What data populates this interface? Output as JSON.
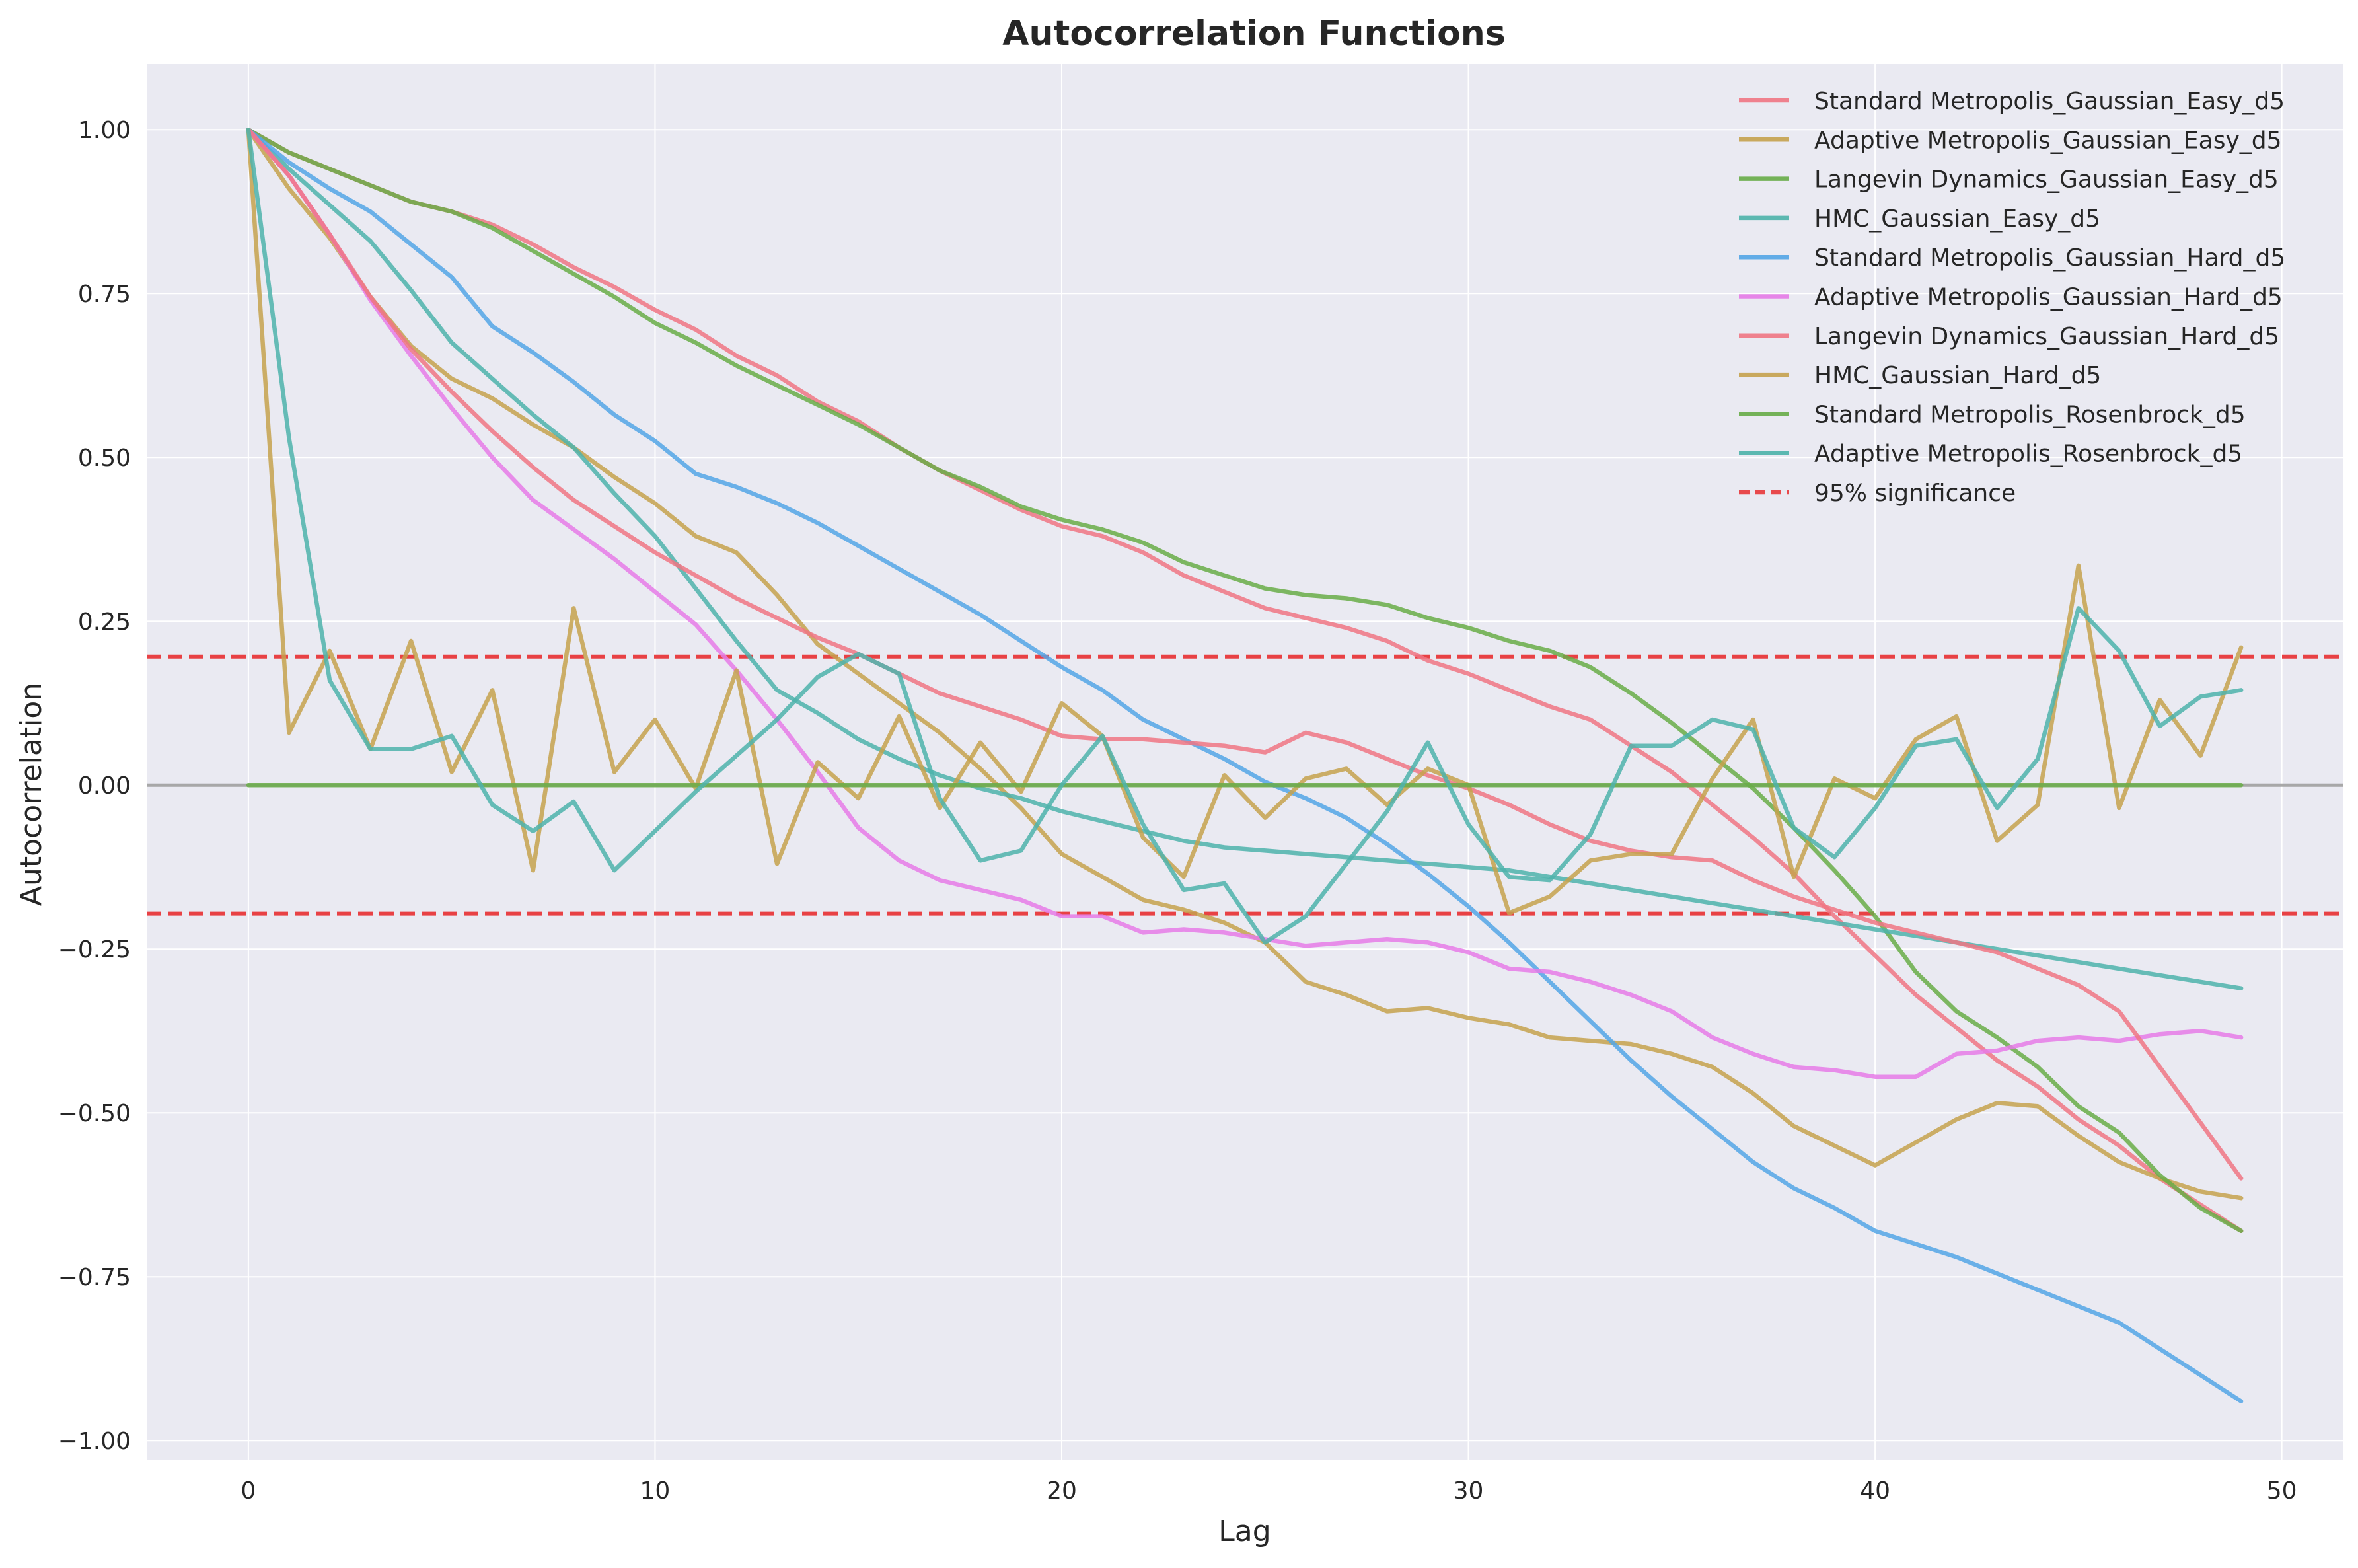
{
  "chart_data": {
    "type": "line",
    "title": "Autocorrelation Functions",
    "xlabel": "Lag",
    "ylabel": "Autocorrelation",
    "xlim": [
      -2.5,
      51.5
    ],
    "ylim": [
      -1.03,
      1.1
    ],
    "grid": true,
    "legend_position": "top-right",
    "x_ticks": [
      0,
      10,
      20,
      30,
      40,
      50
    ],
    "x_tick_labels": [
      "0",
      "10",
      "20",
      "30",
      "40",
      "50"
    ],
    "y_ticks": [
      -1.0,
      -0.75,
      -0.5,
      -0.25,
      0.0,
      0.25,
      0.5,
      0.75,
      1.0
    ],
    "y_tick_labels": [
      "−1.00",
      "−0.75",
      "−0.50",
      "−0.25",
      "0.00",
      "0.25",
      "0.50",
      "0.75",
      "1.00"
    ],
    "reference_lines": [
      {
        "name": "95% significance",
        "y": 0.196,
        "style": "dashed",
        "color": "#e8383b"
      },
      {
        "y": -0.196,
        "style": "dashed",
        "color": "#e8383b"
      },
      {
        "y": 0.0,
        "style": "solid",
        "color": "#999999"
      }
    ],
    "x": [
      0,
      1,
      2,
      3,
      4,
      5,
      6,
      7,
      8,
      9,
      10,
      11,
      12,
      13,
      14,
      15,
      16,
      17,
      18,
      19,
      20,
      21,
      22,
      23,
      24,
      25,
      26,
      27,
      28,
      29,
      30,
      31,
      32,
      33,
      34,
      35,
      36,
      37,
      38,
      39,
      40,
      41,
      42,
      43,
      44,
      45,
      46,
      47,
      48,
      49
    ],
    "series": [
      {
        "name": "Standard Metropolis_Gaussian_Easy_d5",
        "color": "#f07684",
        "values": [
          1.0,
          0.965,
          0.94,
          0.915,
          0.89,
          0.875,
          0.855,
          0.825,
          0.79,
          0.76,
          0.725,
          0.695,
          0.655,
          0.625,
          0.585,
          0.555,
          0.515,
          0.48,
          0.45,
          0.42,
          0.395,
          0.38,
          0.355,
          0.32,
          0.295,
          0.27,
          0.255,
          0.24,
          0.22,
          0.19,
          0.17,
          0.145,
          0.12,
          0.1,
          0.06,
          0.02,
          -0.03,
          -0.08,
          -0.135,
          -0.2,
          -0.26,
          -0.32,
          -0.37,
          -0.42,
          -0.46,
          -0.51,
          -0.55,
          -0.6,
          -0.64,
          -0.68
        ]
      },
      {
        "name": "Adaptive Metropolis_Gaussian_Easy_d5",
        "color": "#c6a24e",
        "values": [
          1.0,
          0.91,
          0.835,
          0.745,
          0.67,
          0.62,
          0.59,
          0.55,
          0.515,
          0.47,
          0.43,
          0.38,
          0.355,
          0.29,
          0.215,
          0.17,
          0.125,
          0.08,
          0.025,
          -0.035,
          -0.105,
          -0.14,
          -0.175,
          -0.19,
          -0.21,
          -0.24,
          -0.3,
          -0.32,
          -0.345,
          -0.34,
          -0.355,
          -0.365,
          -0.385,
          -0.39,
          -0.395,
          -0.41,
          -0.43,
          -0.47,
          -0.52,
          -0.55,
          -0.58,
          -0.545,
          -0.51,
          -0.485,
          -0.49,
          -0.535,
          -0.575,
          -0.6,
          -0.62,
          -0.63
        ]
      },
      {
        "name": "Langevin Dynamics_Gaussian_Easy_d5",
        "color": "#68ad48",
        "values": [
          1.0,
          0.965,
          0.94,
          0.915,
          0.89,
          0.875,
          0.85,
          0.815,
          0.78,
          0.745,
          0.705,
          0.675,
          0.64,
          0.61,
          0.58,
          0.55,
          0.515,
          0.48,
          0.455,
          0.425,
          0.405,
          0.39,
          0.37,
          0.34,
          0.32,
          0.3,
          0.29,
          0.285,
          0.275,
          0.255,
          0.24,
          0.22,
          0.205,
          0.18,
          0.14,
          0.095,
          0.045,
          -0.005,
          -0.065,
          -0.13,
          -0.2,
          -0.285,
          -0.345,
          -0.385,
          -0.43,
          -0.49,
          -0.53,
          -0.595,
          -0.645,
          -0.68
        ]
      },
      {
        "name": "HMC_Gaussian_Easy_d5",
        "color": "#4db3ab",
        "values": [
          1.0,
          0.94,
          0.885,
          0.83,
          0.755,
          0.675,
          0.62,
          0.565,
          0.515,
          0.445,
          0.38,
          0.3,
          0.22,
          0.145,
          0.11,
          0.07,
          0.04,
          0.015,
          -0.005,
          -0.02,
          -0.04,
          -0.055,
          -0.07,
          -0.085,
          -0.095,
          -0.1,
          -0.105,
          -0.11,
          -0.115,
          -0.12,
          -0.125,
          -0.13,
          -0.14,
          -0.15,
          -0.16,
          -0.17,
          -0.18,
          -0.19,
          -0.2,
          -0.21,
          -0.22,
          -0.23,
          -0.24,
          -0.25,
          -0.26,
          -0.27,
          -0.28,
          -0.29,
          -0.3,
          -0.31
        ]
      },
      {
        "name": "Standard Metropolis_Gaussian_Hard_d5",
        "color": "#54a6e6",
        "values": [
          1.0,
          0.95,
          0.91,
          0.875,
          0.825,
          0.775,
          0.7,
          0.66,
          0.615,
          0.565,
          0.525,
          0.475,
          0.455,
          0.43,
          0.4,
          0.365,
          0.33,
          0.295,
          0.26,
          0.22,
          0.18,
          0.145,
          0.1,
          0.07,
          0.04,
          0.005,
          -0.02,
          -0.05,
          -0.09,
          -0.135,
          -0.185,
          -0.24,
          -0.3,
          -0.36,
          -0.42,
          -0.475,
          -0.525,
          -0.575,
          -0.615,
          -0.645,
          -0.68,
          -0.7,
          -0.72,
          -0.745,
          -0.77,
          -0.795,
          -0.82,
          -0.86,
          -0.9,
          -0.94
        ]
      },
      {
        "name": "Adaptive Metropolis_Gaussian_Hard_d5",
        "color": "#e67be8",
        "values": [
          1.0,
          0.93,
          0.84,
          0.74,
          0.655,
          0.575,
          0.5,
          0.435,
          0.39,
          0.345,
          0.295,
          0.245,
          0.175,
          0.1,
          0.02,
          -0.065,
          -0.115,
          -0.145,
          -0.16,
          -0.175,
          -0.2,
          -0.2,
          -0.225,
          -0.22,
          -0.225,
          -0.235,
          -0.245,
          -0.24,
          -0.235,
          -0.24,
          -0.255,
          -0.28,
          -0.285,
          -0.3,
          -0.32,
          -0.345,
          -0.385,
          -0.41,
          -0.43,
          -0.435,
          -0.445,
          -0.445,
          -0.41,
          -0.405,
          -0.39,
          -0.385,
          -0.39,
          -0.38,
          -0.375,
          -0.385
        ]
      },
      {
        "name": "Langevin Dynamics_Gaussian_Hard_d5",
        "color": "#f07684",
        "values": [
          1.0,
          0.93,
          0.84,
          0.745,
          0.665,
          0.6,
          0.54,
          0.485,
          0.435,
          0.395,
          0.355,
          0.32,
          0.285,
          0.255,
          0.225,
          0.2,
          0.17,
          0.14,
          0.12,
          0.1,
          0.075,
          0.07,
          0.07,
          0.065,
          0.06,
          0.05,
          0.08,
          0.065,
          0.04,
          0.015,
          -0.005,
          -0.03,
          -0.06,
          -0.085,
          -0.1,
          -0.11,
          -0.115,
          -0.145,
          -0.17,
          -0.19,
          -0.21,
          -0.225,
          -0.24,
          -0.255,
          -0.28,
          -0.305,
          -0.345,
          -0.43,
          -0.515,
          -0.6
        ]
      },
      {
        "name": "HMC_Gaussian_Hard_d5",
        "color": "#c6a24e",
        "values": [
          1.0,
          0.08,
          0.205,
          0.055,
          0.22,
          0.02,
          0.145,
          -0.13,
          0.27,
          0.02,
          0.1,
          -0.005,
          0.175,
          -0.12,
          0.035,
          -0.02,
          0.105,
          -0.035,
          0.065,
          -0.01,
          0.125,
          0.075,
          -0.08,
          -0.14,
          0.015,
          -0.05,
          0.01,
          0.025,
          -0.03,
          0.025,
          0.0,
          -0.195,
          -0.17,
          -0.115,
          -0.105,
          -0.105,
          0.01,
          0.1,
          -0.14,
          0.01,
          -0.02,
          0.07,
          0.105,
          -0.085,
          -0.03,
          0.335,
          -0.035,
          0.13,
          0.045,
          0.21
        ]
      },
      {
        "name": "Standard Metropolis_Rosenbrock_d5",
        "color": "#68ad48",
        "values": [
          0,
          0,
          0,
          0,
          0,
          0,
          0,
          0,
          0,
          0,
          0,
          0,
          0,
          0,
          0,
          0,
          0,
          0,
          0,
          0,
          0,
          0,
          0,
          0,
          0,
          0,
          0,
          0,
          0,
          0,
          0,
          0,
          0,
          0,
          0,
          0,
          0,
          0,
          0,
          0,
          0,
          0,
          0,
          0,
          0,
          0,
          0,
          0,
          0,
          0
        ]
      },
      {
        "name": "Adaptive Metropolis_Rosenbrock_d5",
        "color": "#4db3ab",
        "values": [
          1.0,
          0.53,
          0.16,
          0.055,
          0.055,
          0.075,
          -0.03,
          -0.07,
          -0.025,
          -0.13,
          -0.07,
          -0.01,
          0.045,
          0.1,
          0.165,
          0.2,
          0.17,
          -0.02,
          -0.115,
          -0.1,
          0.0,
          0.075,
          -0.06,
          -0.16,
          -0.15,
          -0.24,
          -0.2,
          -0.12,
          -0.04,
          0.065,
          -0.06,
          -0.14,
          -0.145,
          -0.075,
          0.06,
          0.06,
          0.1,
          0.085,
          -0.065,
          -0.11,
          -0.035,
          0.06,
          0.07,
          -0.035,
          0.04,
          0.27,
          0.205,
          0.09,
          0.135,
          0.145
        ]
      }
    ]
  }
}
